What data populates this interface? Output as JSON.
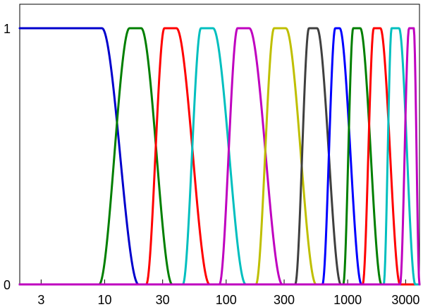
{
  "chart_data": {
    "type": "line",
    "title": "",
    "xlabel": "",
    "ylabel": "",
    "x_scale": "log",
    "xlim": [
      2,
      3900
    ],
    "ylim": [
      0,
      1
    ],
    "grid": false,
    "legend": "none",
    "x_ticks": [
      3,
      10,
      30,
      100,
      300,
      1000,
      3000
    ],
    "x_tick_labels": [
      "3",
      "10",
      "30",
      "100",
      "300",
      "1000",
      "3000"
    ],
    "y_ticks": [
      0,
      1
    ],
    "y_tick_labels": [
      "0",
      "1"
    ],
    "crossover_points": [
      {
        "x": 14.2,
        "y": 0.5
      },
      {
        "x": 28.5,
        "y": 0.5
      },
      {
        "x": 57,
        "y": 0.5
      },
      {
        "x": 114,
        "y": 0.5
      },
      {
        "x": 228,
        "y": 0.5
      },
      {
        "x": 456,
        "y": 0.5
      },
      {
        "x": 740,
        "y": 0.5
      },
      {
        "x": 1100,
        "y": 0.5
      },
      {
        "x": 1600,
        "y": 0.5
      },
      {
        "x": 2300,
        "y": 0.5
      },
      {
        "x": 3100,
        "y": 0.5
      }
    ],
    "series": [
      {
        "color": "#0000cc",
        "plateau_start": 2,
        "plateau_end": 9.5,
        "falloff_end": 19
      },
      {
        "color": "#007f00",
        "rise_start": 9,
        "plateau_start": 16,
        "plateau_end": 20,
        "falloff_end": 36
      },
      {
        "color": "#ff0000",
        "rise_start": 22,
        "plateau_start": 31,
        "plateau_end": 39,
        "falloff_end": 73
      },
      {
        "color": "#00bfbf",
        "rise_start": 44,
        "plateau_start": 62,
        "plateau_end": 78,
        "falloff_end": 145
      },
      {
        "color": "#bf00bf",
        "rise_start": 88,
        "plateau_start": 124,
        "plateau_end": 155,
        "falloff_end": 290
      },
      {
        "color": "#bfbf00",
        "rise_start": 176,
        "plateau_start": 248,
        "plateau_end": 310,
        "falloff_end": 550
      },
      {
        "color": "#3f3f3f",
        "rise_start": 370,
        "plateau_start": 480,
        "plateau_end": 560,
        "falloff_end": 880
      },
      {
        "color": "#0000ff",
        "rise_start": 620,
        "plateau_start": 790,
        "plateau_end": 860,
        "falloff_end": 1300
      },
      {
        "color": "#007f00",
        "rise_start": 920,
        "plateau_start": 1110,
        "plateau_end": 1270,
        "falloff_end": 1900
      },
      {
        "color": "#ff0000",
        "rise_start": 1330,
        "plateau_start": 1640,
        "plateau_end": 1860,
        "falloff_end": 2700
      },
      {
        "color": "#00bfbf",
        "rise_start": 1980,
        "plateau_start": 2300,
        "plateau_end": 2650,
        "falloff_end": 3600
      },
      {
        "color": "#bf00bf",
        "rise_start": 2700,
        "plateau_start": 3200,
        "plateau_end": 3500,
        "falloff_end": 3900
      }
    ]
  }
}
